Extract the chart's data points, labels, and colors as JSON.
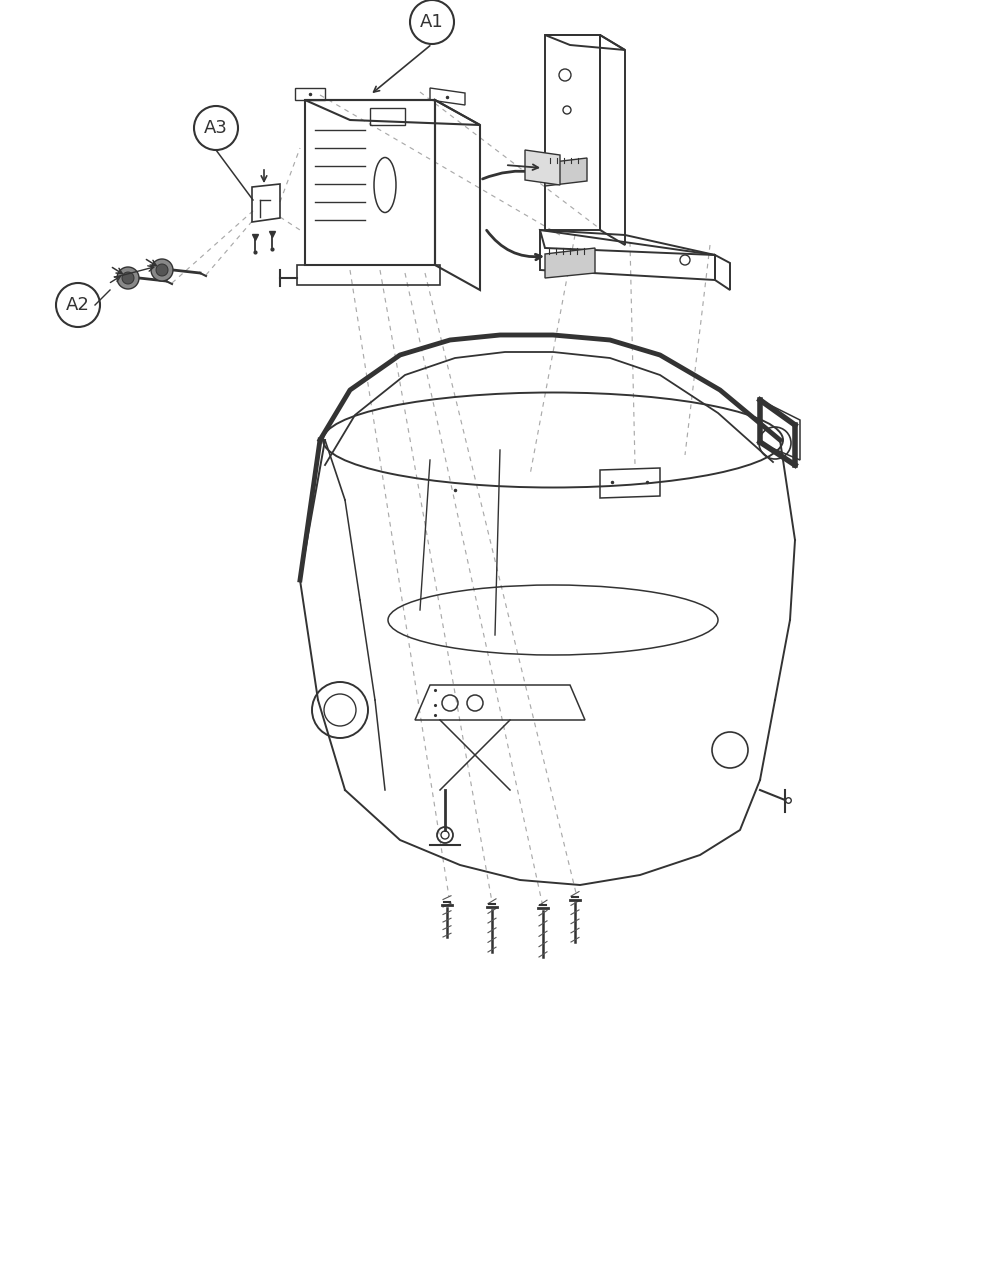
{
  "background_color": "#ffffff",
  "line_color": "#333333",
  "light_line_color": "#555555",
  "dashed_line_color": "#aaaaaa",
  "label_A1": "A1",
  "label_A2": "A2",
  "label_A3": "A3",
  "figsize": [
    10.0,
    12.67
  ],
  "dpi": 100
}
